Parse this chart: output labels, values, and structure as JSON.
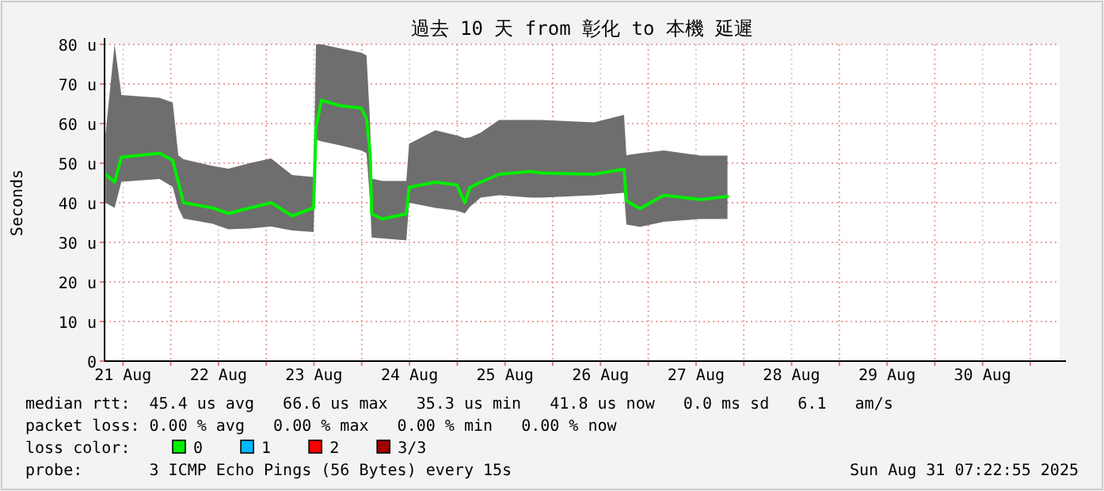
{
  "chart_data": {
    "type": "line",
    "title": "過去 10 天 from 彰化 to 本機 延遲",
    "ylabel": "Seconds",
    "xlim": [
      "2025-08-21T07:22",
      "2025-08-31T07:22"
    ],
    "xticks": [
      {
        "value": "2025-08-21T12:00",
        "label": "21 Aug"
      },
      {
        "value": "2025-08-22T00:00",
        "label": null
      },
      {
        "value": "2025-08-22T12:00",
        "label": "22 Aug"
      },
      {
        "value": "2025-08-23T00:00",
        "label": null
      },
      {
        "value": "2025-08-23T12:00",
        "label": "23 Aug"
      },
      {
        "value": "2025-08-24T00:00",
        "label": null
      },
      {
        "value": "2025-08-24T12:00",
        "label": "24 Aug"
      },
      {
        "value": "2025-08-25T00:00",
        "label": null
      },
      {
        "value": "2025-08-25T12:00",
        "label": "25 Aug"
      },
      {
        "value": "2025-08-26T00:00",
        "label": null
      },
      {
        "value": "2025-08-26T12:00",
        "label": "26 Aug"
      },
      {
        "value": "2025-08-27T00:00",
        "label": null
      },
      {
        "value": "2025-08-27T12:00",
        "label": "27 Aug"
      },
      {
        "value": "2025-08-28T00:00",
        "label": null
      },
      {
        "value": "2025-08-28T12:00",
        "label": "28 Aug"
      },
      {
        "value": "2025-08-29T00:00",
        "label": null
      },
      {
        "value": "2025-08-29T12:00",
        "label": "29 Aug"
      },
      {
        "value": "2025-08-30T00:00",
        "label": null
      },
      {
        "value": "2025-08-30T12:00",
        "label": "30 Aug"
      },
      {
        "value": "2025-08-31T00:00",
        "label": null
      }
    ],
    "ylim": [
      0,
      80
    ],
    "yticks": [
      0,
      {
        "value": 10,
        "label": "10 u"
      },
      {
        "value": 20,
        "label": "20 u"
      },
      {
        "value": 30,
        "label": "30 u"
      },
      {
        "value": 40,
        "label": "40 u"
      },
      {
        "value": 50,
        "label": "50 u"
      },
      {
        "value": 60,
        "label": "60 u"
      },
      {
        "value": 70,
        "label": "70 u"
      },
      {
        "value": 80,
        "label": "80 u"
      }
    ],
    "grid": true,
    "legend": "bottom",
    "legend_title": "loss color:",
    "marker": "none",
    "line_style": "solid",
    "x": [
      "2025-08-21T07:36",
      "2025-08-21T09:54",
      "2025-08-21T11:36",
      "2025-08-21T21:12",
      "2025-08-22T00:30",
      "2025-08-22T01:54",
      "2025-08-22T03:12",
      "2025-08-22T10:30",
      "2025-08-22T14:30",
      "2025-08-22T19:54",
      "2025-08-23T01:12",
      "2025-08-23T06:30",
      "2025-08-23T11:54",
      "2025-08-23T12:30",
      "2025-08-23T13:54",
      "2025-08-23T18:30",
      "2025-08-23T23:54",
      "2025-08-24T01:12",
      "2025-08-24T02:06",
      "2025-08-24T02:30",
      "2025-08-24T05:12",
      "2025-08-24T11:12",
      "2025-08-24T11:54",
      "2025-08-24T18:30",
      "2025-08-24T23:54",
      "2025-08-25T01:54",
      "2025-08-25T03:12",
      "2025-08-25T05:54",
      "2025-08-25T10:30",
      "2025-08-25T18:30",
      "2025-08-25T21:12",
      "2025-08-26T10:24",
      "2025-08-26T17:54",
      "2025-08-26T18:30",
      "2025-08-26T21:54",
      "2025-08-27T03:54",
      "2025-08-27T13:12",
      "2025-08-27T19:54"
    ],
    "series": [
      {
        "name": "0",
        "color": "#00ee00",
        "values": [
          47.2,
          45.2,
          51.5,
          52.5,
          50.7,
          45.2,
          40,
          38.7,
          37.3,
          38.7,
          40,
          36.7,
          38.7,
          59.2,
          65.9,
          64.5,
          63.9,
          61.2,
          52.5,
          37.2,
          35.9,
          37.2,
          43.9,
          45.2,
          44.5,
          40,
          43.9,
          45.2,
          47.2,
          47.9,
          47.5,
          47.2,
          48.5,
          40.5,
          38.5,
          41.9,
          40.8,
          41.6
        ],
        "lower": [
          40,
          38.7,
          45.3,
          46,
          44,
          38.7,
          36,
          34.7,
          33.3,
          33.5,
          34,
          33,
          32.6,
          55.9,
          55.5,
          54.5,
          53.2,
          52.5,
          40,
          31.2,
          31,
          30.5,
          40,
          38.7,
          38,
          37.3,
          39,
          41.3,
          41.9,
          41.3,
          41.3,
          41.9,
          42.5,
          34.5,
          33.9,
          35.2,
          35.9,
          35.9
        ],
        "upper": [
          57.3,
          80,
          67.2,
          66.5,
          65.3,
          52,
          51,
          49.3,
          48.6,
          50,
          51.2,
          47,
          46.5,
          80,
          80,
          79,
          77.9,
          77.2,
          60,
          46.1,
          45.5,
          45.5,
          54.9,
          58.3,
          57,
          56.3,
          56.5,
          57.7,
          60.9,
          60.9,
          60.9,
          60.3,
          62.2,
          52,
          52.5,
          53.2,
          51.9,
          51.9
        ]
      },
      {
        "name": "1",
        "color": "#00b8ff",
        "values": [
          null,
          null,
          null,
          null,
          null,
          null,
          null,
          null,
          null,
          null,
          null,
          null,
          null,
          null,
          null,
          null,
          null,
          null,
          null,
          null,
          null,
          null,
          null,
          null,
          null,
          null,
          null,
          null,
          null,
          null,
          null,
          null,
          null,
          null,
          null,
          null,
          null,
          null
        ]
      },
      {
        "name": "2",
        "color": "#ff0000",
        "values": [
          null,
          null,
          null,
          null,
          null,
          null,
          null,
          null,
          null,
          null,
          null,
          null,
          null,
          null,
          null,
          null,
          null,
          null,
          null,
          null,
          null,
          null,
          null,
          null,
          null,
          null,
          null,
          null,
          null,
          null,
          null,
          null,
          null,
          null,
          null,
          null,
          null,
          null
        ]
      },
      {
        "name": "3/3",
        "color": "#a00000",
        "values": [
          null,
          null,
          null,
          null,
          null,
          null,
          null,
          null,
          null,
          null,
          null,
          null,
          null,
          null,
          null,
          null,
          null,
          null,
          null,
          null,
          null,
          null,
          null,
          null,
          null,
          null,
          null,
          null,
          null,
          null,
          null,
          null,
          null,
          null,
          null,
          null,
          null,
          null
        ]
      }
    ],
    "annotations": [
      "median rtt:  45.4 us avg   66.6 us max   35.3 us min   41.8 us now   0.0 ms sd   6.1   am/s",
      "packet loss: 0.00 % avg   0.00 % max   0.00 % min   0.00 % now",
      "probe:       3 ICMP Echo Pings (56 Bytes) every 15s",
      "Sun Aug 31 07:22:55 2025"
    ]
  }
}
